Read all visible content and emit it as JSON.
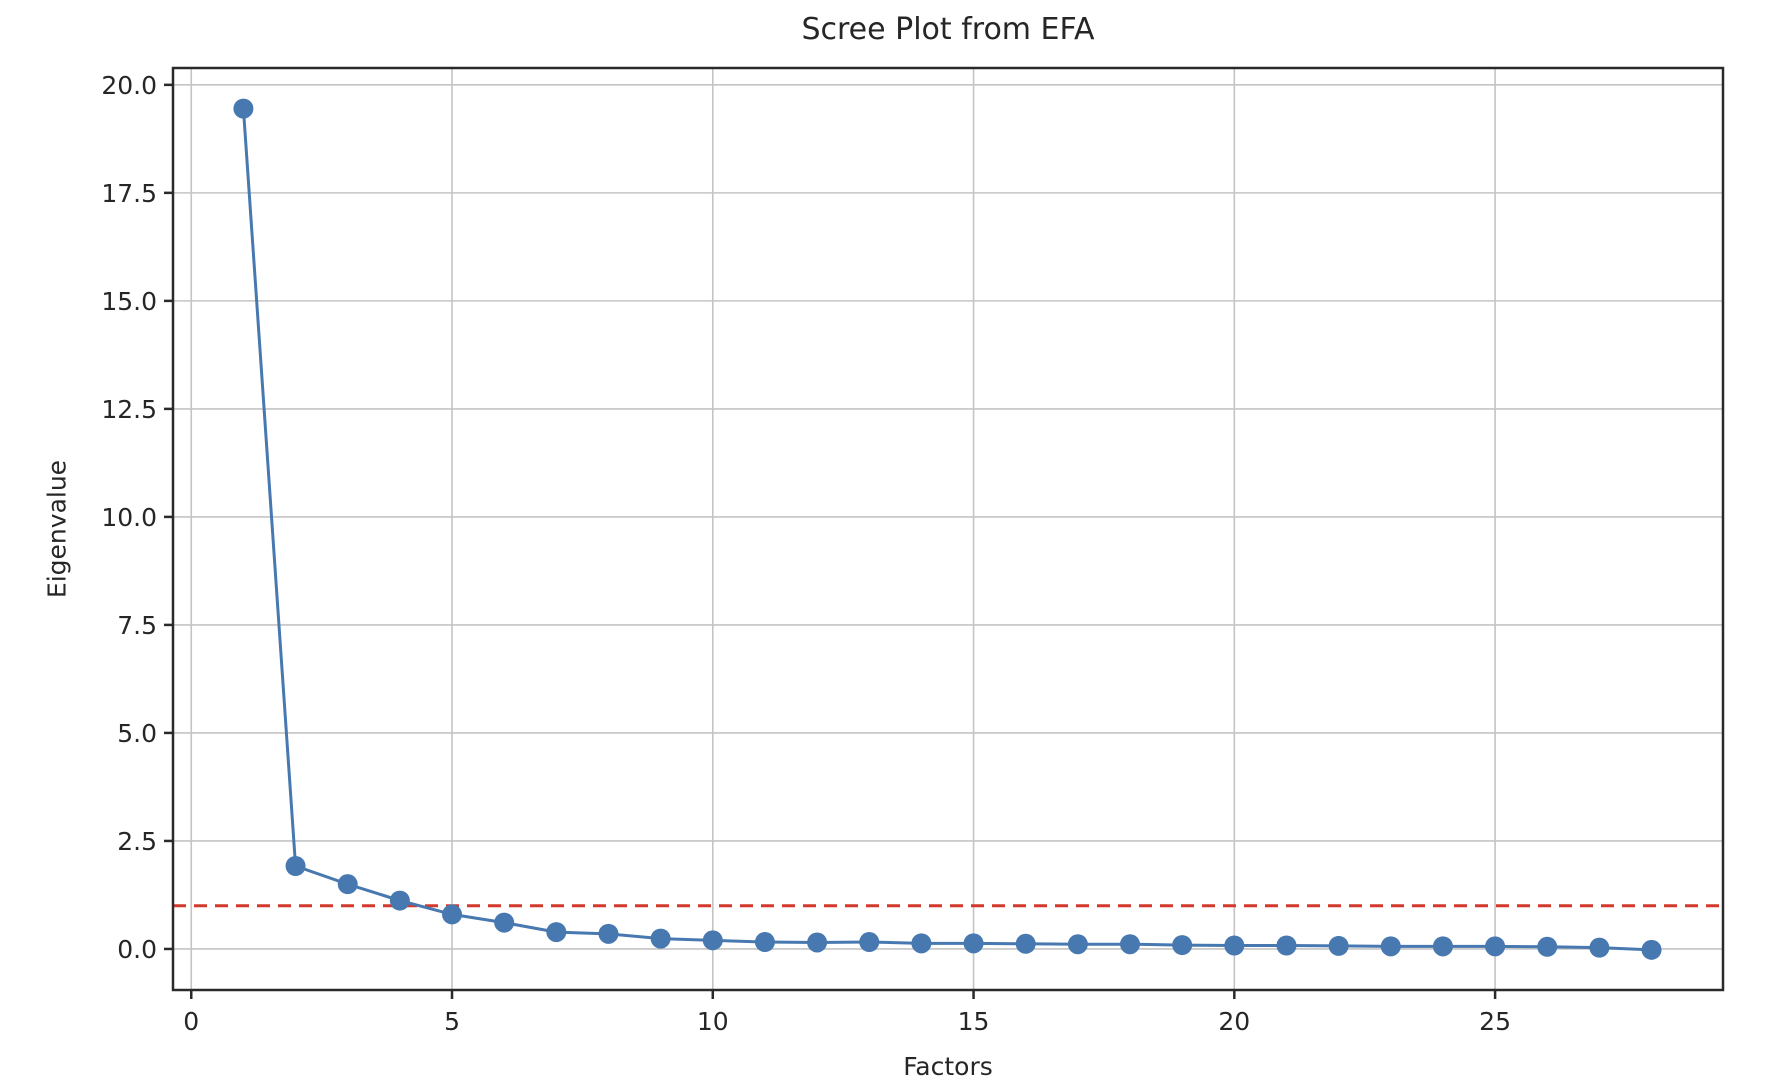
{
  "chart_data": {
    "type": "line",
    "title": "Scree Plot from EFA",
    "xlabel": "Factors",
    "ylabel": "Eigenvalue",
    "series": [
      {
        "name": "eigenvalues",
        "x": [
          1,
          2,
          3,
          4,
          5,
          6,
          7,
          8,
          9,
          10,
          11,
          12,
          13,
          14,
          15,
          16,
          17,
          18,
          19,
          20,
          21,
          22,
          23,
          24,
          25,
          26,
          27,
          28
        ],
        "y": [
          19.45,
          1.92,
          1.5,
          1.12,
          0.8,
          0.61,
          0.39,
          0.35,
          0.24,
          0.2,
          0.16,
          0.15,
          0.16,
          0.13,
          0.13,
          0.12,
          0.11,
          0.11,
          0.09,
          0.08,
          0.08,
          0.07,
          0.06,
          0.06,
          0.06,
          0.05,
          0.03,
          -0.02
        ],
        "marker": "circle",
        "line_style": "solid"
      }
    ],
    "reference_line": {
      "y": 1.0,
      "style": "dashed",
      "orientation": "horizontal"
    },
    "xlim": [
      -0.35,
      29.37
    ],
    "ylim": [
      -0.95,
      20.39
    ],
    "xtick_values": [
      0,
      5,
      10,
      15,
      20,
      25
    ],
    "xtick_labels": [
      "0",
      "5",
      "10",
      "15",
      "20",
      "25"
    ],
    "ytick_values": [
      0.0,
      2.5,
      5.0,
      7.5,
      10.0,
      12.5,
      15.0,
      17.5,
      20.0
    ],
    "ytick_labels": [
      "0.0",
      "2.5",
      "5.0",
      "7.5",
      "10.0",
      "12.5",
      "15.0",
      "17.5",
      "20.0"
    ],
    "grid": true,
    "legend": "none",
    "colors": {
      "line": "#4878b0",
      "marker": "#4878b0",
      "reference": "#d3382c",
      "grid": "#c4c4c4",
      "spine": "#2a2a2a",
      "text": "#262626",
      "background": "#ffffff"
    }
  }
}
